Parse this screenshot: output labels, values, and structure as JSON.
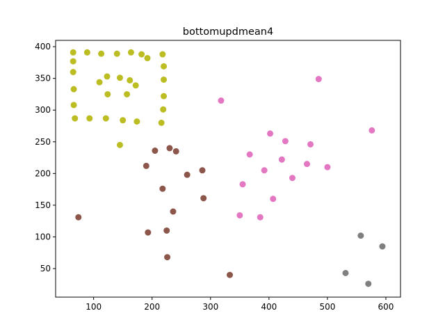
{
  "chart_data": {
    "type": "scatter",
    "title": "bottomupdmean4",
    "xlabel": "",
    "ylabel": "",
    "xlim": [
      35,
      625
    ],
    "ylim": [
      5,
      410
    ],
    "xticks": [
      100,
      200,
      300,
      400,
      500,
      600
    ],
    "yticks": [
      50,
      100,
      150,
      200,
      250,
      300,
      350,
      400
    ],
    "grid": false,
    "series": [
      {
        "color": "#bcbd22",
        "points": [
          [
            65,
            391
          ],
          [
            89,
            391
          ],
          [
            113,
            389
          ],
          [
            140,
            389
          ],
          [
            164,
            391
          ],
          [
            182,
            388
          ],
          [
            192,
            382
          ],
          [
            218,
            388
          ],
          [
            65,
            377
          ],
          [
            65,
            360
          ],
          [
            220,
            369
          ],
          [
            66,
            333
          ],
          [
            66,
            308
          ],
          [
            220,
            348
          ],
          [
            220,
            322
          ],
          [
            219,
            301
          ],
          [
            68,
            287
          ],
          [
            93,
            287
          ],
          [
            121,
            287
          ],
          [
            150,
            284
          ],
          [
            174,
            282
          ],
          [
            216,
            280
          ],
          [
            110,
            344
          ],
          [
            123,
            353
          ],
          [
            145,
            351
          ],
          [
            162,
            347
          ],
          [
            172,
            339
          ],
          [
            124,
            325
          ],
          [
            157,
            325
          ],
          [
            145,
            245
          ]
        ]
      },
      {
        "color": "#e377c2",
        "points": [
          [
            485,
            349
          ],
          [
            318,
            315
          ],
          [
            576,
            268
          ],
          [
            402,
            263
          ],
          [
            428,
            251
          ],
          [
            471,
            246
          ],
          [
            367,
            230
          ],
          [
            422,
            222
          ],
          [
            465,
            215
          ],
          [
            500,
            210
          ],
          [
            392,
            205
          ],
          [
            440,
            193
          ],
          [
            355,
            183
          ],
          [
            407,
            160
          ],
          [
            350,
            134
          ],
          [
            385,
            131
          ]
        ]
      },
      {
        "color": "#8c564b",
        "points": [
          [
            205,
            236
          ],
          [
            230,
            240
          ],
          [
            241,
            235
          ],
          [
            190,
            212
          ],
          [
            286,
            205
          ],
          [
            260,
            198
          ],
          [
            218,
            176
          ],
          [
            288,
            161
          ],
          [
            236,
            140
          ],
          [
            74,
            131
          ],
          [
            193,
            107
          ],
          [
            225,
            110
          ],
          [
            226,
            68
          ],
          [
            333,
            40
          ]
        ]
      },
      {
        "color": "#7f7f7f",
        "points": [
          [
            557,
            102
          ],
          [
            594,
            85
          ],
          [
            531,
            43
          ],
          [
            570,
            26
          ]
        ]
      }
    ]
  }
}
